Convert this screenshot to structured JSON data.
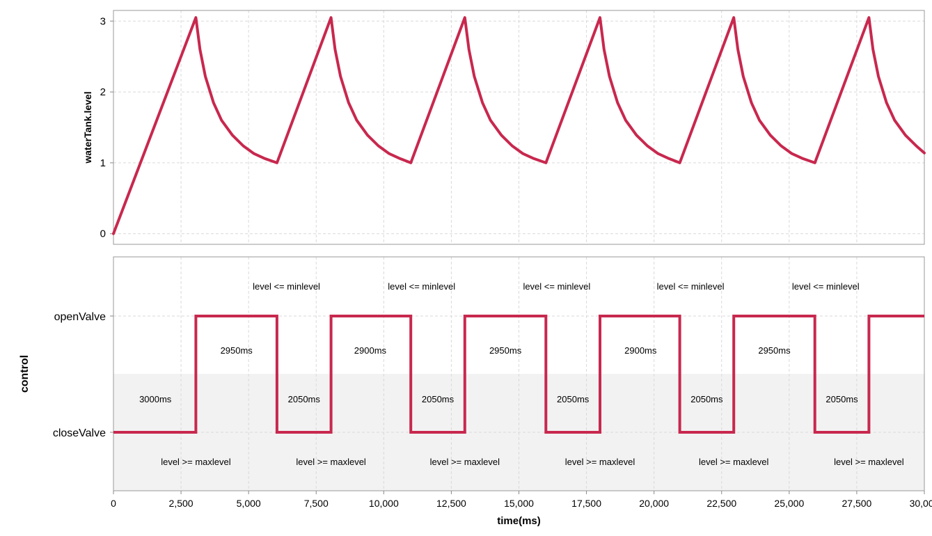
{
  "chart_data": [
    {
      "type": "line",
      "ylabel": "waterTank.level",
      "xlim": [
        0,
        30000
      ],
      "ylim": [
        -0.15,
        3.15
      ],
      "yticks": [
        0,
        1,
        2,
        3
      ],
      "grid": true,
      "color": "#c8284e",
      "series": [
        {
          "x": [
            0,
            3050,
            3200,
            3400,
            3700,
            4000,
            4400,
            4800,
            5200,
            5600,
            6050,
            8050,
            8200,
            8400,
            8700,
            9000,
            9400,
            9800,
            10200,
            10600,
            11000,
            13000,
            13150,
            13350,
            13650,
            13950,
            14350,
            14750,
            15150,
            15550,
            16000,
            18000,
            18150,
            18350,
            18650,
            18950,
            19350,
            19750,
            20150,
            20550,
            20950,
            22950,
            23100,
            23300,
            23600,
            23900,
            24300,
            24700,
            25100,
            25500,
            25950,
            27950,
            28100,
            28300,
            28600,
            28900,
            29300,
            29700,
            30000
          ],
          "y": [
            0,
            3.05,
            2.6,
            2.22,
            1.85,
            1.6,
            1.39,
            1.24,
            1.13,
            1.06,
            1.0,
            3.05,
            2.6,
            2.22,
            1.85,
            1.6,
            1.39,
            1.24,
            1.13,
            1.06,
            1.0,
            3.05,
            2.6,
            2.22,
            1.85,
            1.6,
            1.39,
            1.24,
            1.13,
            1.06,
            1.0,
            3.05,
            2.6,
            2.22,
            1.85,
            1.6,
            1.39,
            1.24,
            1.13,
            1.06,
            1.0,
            3.05,
            2.6,
            2.22,
            1.85,
            1.6,
            1.39,
            1.24,
            1.13,
            1.06,
            1.0,
            3.05,
            2.6,
            2.22,
            1.85,
            1.6,
            1.39,
            1.24,
            1.14
          ]
        }
      ]
    },
    {
      "type": "line",
      "step": true,
      "ylabel": "control",
      "xlabel": "time(ms)",
      "xlim": [
        0,
        30000
      ],
      "xticks": [
        0,
        2500,
        5000,
        7500,
        10000,
        12500,
        15000,
        17500,
        20000,
        22500,
        25000,
        27500,
        30000
      ],
      "xtick_labels": [
        "0",
        "2,500",
        "5,000",
        "7,500",
        "10,000",
        "12,500",
        "15,000",
        "17,500",
        "20,000",
        "22,500",
        "25,000",
        "27,500",
        "30,000"
      ],
      "states": [
        "closeValve",
        "openValve"
      ],
      "color": "#c8284e",
      "grid": true,
      "series": [
        {
          "x": [
            0,
            3050,
            3050,
            6050,
            6050,
            8050,
            8050,
            11000,
            11000,
            13000,
            13000,
            16000,
            16000,
            18000,
            18000,
            20950,
            20950,
            22950,
            22950,
            25950,
            25950,
            27950,
            27950,
            30000
          ],
          "y": [
            "closeValve",
            "closeValve",
            "openValve",
            "openValve",
            "closeValve",
            "closeValve",
            "openValve",
            "openValve",
            "closeValve",
            "closeValve",
            "openValve",
            "openValve",
            "closeValve",
            "closeValve",
            "openValve",
            "openValve",
            "closeValve",
            "closeValve",
            "openValve",
            "openValve",
            "closeValve",
            "closeValve",
            "openValve",
            "openValve"
          ]
        }
      ],
      "annotations": [
        {
          "text": "3000ms",
          "x": 1550,
          "state": "mid-low"
        },
        {
          "text": "2950ms",
          "x": 4550,
          "state": "mid-high"
        },
        {
          "text": "2050ms",
          "x": 7050,
          "state": "mid-low"
        },
        {
          "text": "2900ms",
          "x": 9500,
          "state": "mid-high"
        },
        {
          "text": "2050ms",
          "x": 12000,
          "state": "mid-low"
        },
        {
          "text": "2950ms",
          "x": 14500,
          "state": "mid-high"
        },
        {
          "text": "2050ms",
          "x": 17000,
          "state": "mid-low"
        },
        {
          "text": "2900ms",
          "x": 19500,
          "state": "mid-high"
        },
        {
          "text": "2050ms",
          "x": 21950,
          "state": "mid-low"
        },
        {
          "text": "2950ms",
          "x": 24450,
          "state": "mid-high"
        },
        {
          "text": "2050ms",
          "x": 26950,
          "state": "mid-low"
        },
        {
          "text": "level <= minlevel",
          "x": 6400,
          "state": "above-open"
        },
        {
          "text": "level <= minlevel",
          "x": 11400,
          "state": "above-open"
        },
        {
          "text": "level <= minlevel",
          "x": 16400,
          "state": "above-open"
        },
        {
          "text": "level <= minlevel",
          "x": 21350,
          "state": "above-open"
        },
        {
          "text": "level <= minlevel",
          "x": 26350,
          "state": "above-open"
        },
        {
          "text": "level >= maxlevel",
          "x": 3050,
          "state": "below-close"
        },
        {
          "text": "level >= maxlevel",
          "x": 8050,
          "state": "below-close"
        },
        {
          "text": "level >= maxlevel",
          "x": 13000,
          "state": "below-close"
        },
        {
          "text": "level >= maxlevel",
          "x": 18000,
          "state": "below-close"
        },
        {
          "text": "level >= maxlevel",
          "x": 22950,
          "state": "below-close"
        },
        {
          "text": "level >= maxlevel",
          "x": 27950,
          "state": "below-close"
        }
      ]
    }
  ]
}
